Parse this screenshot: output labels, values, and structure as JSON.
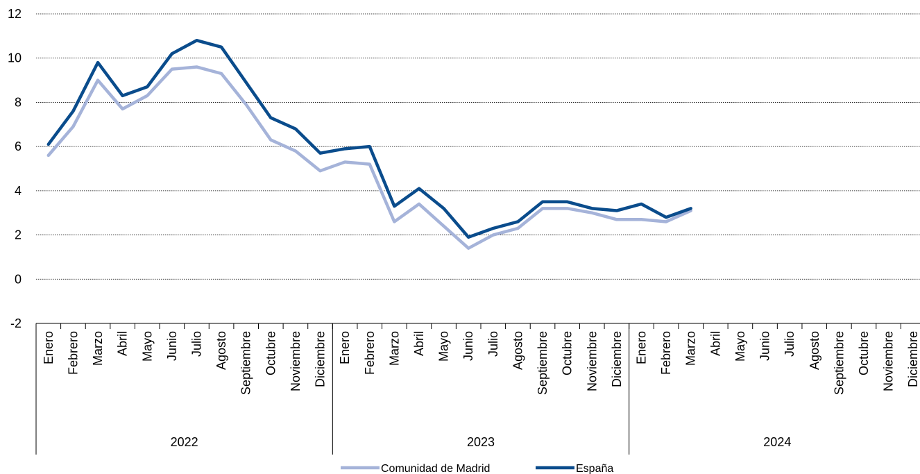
{
  "chart_data": {
    "type": "line",
    "title": "",
    "xlabel": "",
    "ylabel": "",
    "ylim": [
      -2,
      12
    ],
    "yticks": [
      -2,
      0,
      2,
      4,
      6,
      8,
      10,
      12
    ],
    "grid": true,
    "legend_position": "bottom",
    "months": [
      "Enero",
      "Febrero",
      "Marzo",
      "Abril",
      "Mayo",
      "Junio",
      "Julio",
      "Agosto",
      "Septiembre",
      "Octubre",
      "Noviembre",
      "Diciembre"
    ],
    "years": [
      "2022",
      "2023",
      "2024"
    ],
    "series": [
      {
        "name": "Comunidad de Madrid",
        "color": "#a5b3d9",
        "values": [
          5.6,
          6.9,
          9.0,
          7.7,
          8.3,
          9.5,
          9.6,
          9.3,
          7.9,
          6.3,
          5.8,
          4.9,
          5.3,
          5.2,
          2.6,
          3.4,
          2.4,
          1.4,
          2.0,
          2.3,
          3.2,
          3.2,
          3.0,
          2.7,
          2.7,
          2.6,
          3.1
        ]
      },
      {
        "name": "España",
        "color": "#0a4c8c",
        "values": [
          6.1,
          7.6,
          9.8,
          8.3,
          8.7,
          10.2,
          10.8,
          10.5,
          8.9,
          7.3,
          6.8,
          5.7,
          5.9,
          6.0,
          3.3,
          4.1,
          3.2,
          1.9,
          2.3,
          2.6,
          3.5,
          3.5,
          3.2,
          3.1,
          3.4,
          2.8,
          3.2
        ]
      }
    ]
  }
}
